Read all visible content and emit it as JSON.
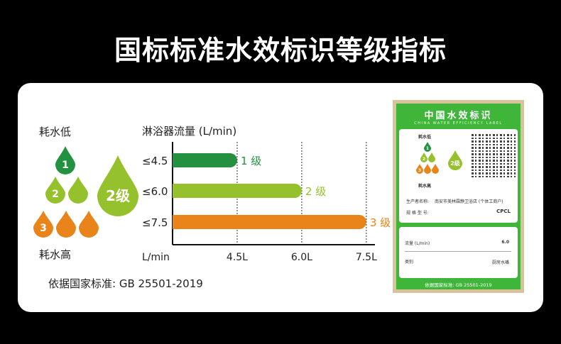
{
  "title": "国标标准水效标识等级指标",
  "legend": {
    "low": "耗水低",
    "high": "耗水高",
    "drops": [
      "1",
      "2",
      "3"
    ],
    "big_drop": "2级"
  },
  "standard": "依据国家标准:  GB 25501-2019",
  "colors": {
    "grade1": "#23913f",
    "grade2": "#94c12c",
    "grade3": "#e8841a",
    "label_green": "#3fb53a"
  },
  "chart_data": {
    "type": "bar",
    "orientation": "horizontal",
    "title": "淋浴器流量 (L/min)",
    "xlabel": "L/min",
    "categories": [
      "≤4.5",
      "≤6.0",
      "≤7.5"
    ],
    "values": [
      4.5,
      6.0,
      7.5
    ],
    "bar_labels": [
      "1 级",
      "2 级",
      "3 级"
    ],
    "xticks": [
      "4.5L",
      "6.0L",
      "7.5L"
    ],
    "xtick_values": [
      4.5,
      6.0,
      7.5
    ],
    "xlim": [
      3,
      7.7
    ],
    "grid": "dashed vertical at ticks"
  },
  "label": {
    "title": "中国水效标识",
    "subtitle": "CHINA WATER EFFICIENCY LABEL",
    "low": "耗水低",
    "high": "耗水高",
    "big": "2级",
    "manufacturer_label": "生产者名称:",
    "manufacturer": "南安市美林霖静卫浴店 (个体工商户)",
    "model_label": "规 格 型 号:",
    "model": "CPCL",
    "flow_label": "流量 (L/min)",
    "flow": "6.0",
    "type_label": "类别",
    "type": "厨房水嘴",
    "footer": "依据国家标准:  GB 25501-2019"
  }
}
